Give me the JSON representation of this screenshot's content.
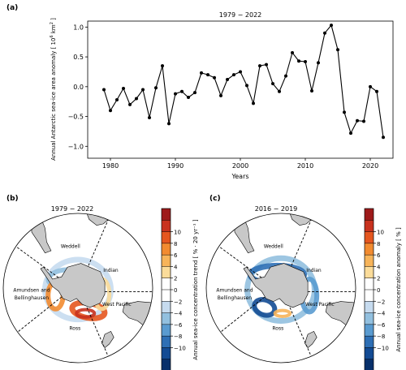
{
  "panel_a": {
    "letter": "(a)",
    "title": "1979 − 2022",
    "ylabel": "Annual Antarctic sea-ice area anomaly [ 10",
    "ylabel_sup": "6",
    "ylabel_unit": " km",
    "ylabel_sup2": "2",
    "ylabel_end": " ]",
    "xlabel": "Years"
  },
  "panel_b": {
    "letter": "(b)",
    "title": "1979 − 2022",
    "colorbar_label": "Annual sea-ice concentration trend [ % · 20 yr⁻¹ ]"
  },
  "panel_c": {
    "letter": "(c)",
    "title": "2016 − 2019",
    "colorbar_label": "Annual sea-ice concentration anomaly [ % ]"
  },
  "map_regions": [
    "Weddell",
    "Indian",
    "Amundsen and",
    "Bellinghausen",
    "West Pacific",
    "Ross"
  ],
  "colorbar": {
    "ticks": [
      "10",
      "8",
      "6",
      "4",
      "2",
      "0",
      "−2",
      "−4",
      "−6",
      "−8",
      "−10"
    ],
    "colors": [
      "#9e1a1a",
      "#c8321e",
      "#e5561f",
      "#f28b30",
      "#f7b45a",
      "#fbdc9a",
      "#ffffff",
      "#ffffff",
      "#c6dbef",
      "#92c0df",
      "#5a9bd0",
      "#2e6fb5",
      "#134b94",
      "#08306b"
    ]
  },
  "chart_data": {
    "type": "line",
    "title": "1979 − 2022",
    "xlabel": "Years",
    "ylabel": "Annual Antarctic sea-ice area anomaly [10^6 km^2]",
    "xlim": [
      1976.5,
      2023.5
    ],
    "ylim": [
      -1.2,
      1.1
    ],
    "xticks": [
      1980,
      1990,
      2000,
      2010,
      2020
    ],
    "yticks": [
      -1.0,
      -0.5,
      0.0,
      0.5,
      1.0
    ],
    "ytick_labels": [
      "−1.0",
      "−0.5",
      "0.0",
      "0.5",
      "1.0"
    ],
    "grid": false,
    "series": [
      {
        "x": [
          1979,
          1980,
          1981,
          1982,
          1983,
          1984,
          1985,
          1986,
          1987,
          1988,
          1989,
          1990,
          1991,
          1992,
          1993,
          1994,
          1995,
          1996,
          1997,
          1998,
          1999,
          2000,
          2001,
          2002,
          2003,
          2004,
          2005,
          2006,
          2007,
          2008,
          2009,
          2010,
          2011,
          2012,
          2013,
          2014,
          2015,
          2016,
          2017,
          2018,
          2019,
          2020,
          2021,
          2022
        ],
        "values": [
          -0.05,
          -0.4,
          -0.22,
          -0.03,
          -0.3,
          -0.2,
          -0.05,
          -0.52,
          -0.02,
          0.35,
          -0.62,
          -0.12,
          -0.08,
          -0.18,
          -0.1,
          0.23,
          0.2,
          0.15,
          -0.15,
          0.12,
          0.2,
          0.25,
          0.02,
          -0.28,
          0.35,
          0.37,
          0.05,
          -0.08,
          0.18,
          0.57,
          0.43,
          0.42,
          -0.07,
          0.4,
          0.9,
          1.03,
          0.62,
          -0.43,
          -0.78,
          -0.57,
          -0.58,
          0.0,
          -0.08,
          -0.85
        ]
      }
    ]
  }
}
